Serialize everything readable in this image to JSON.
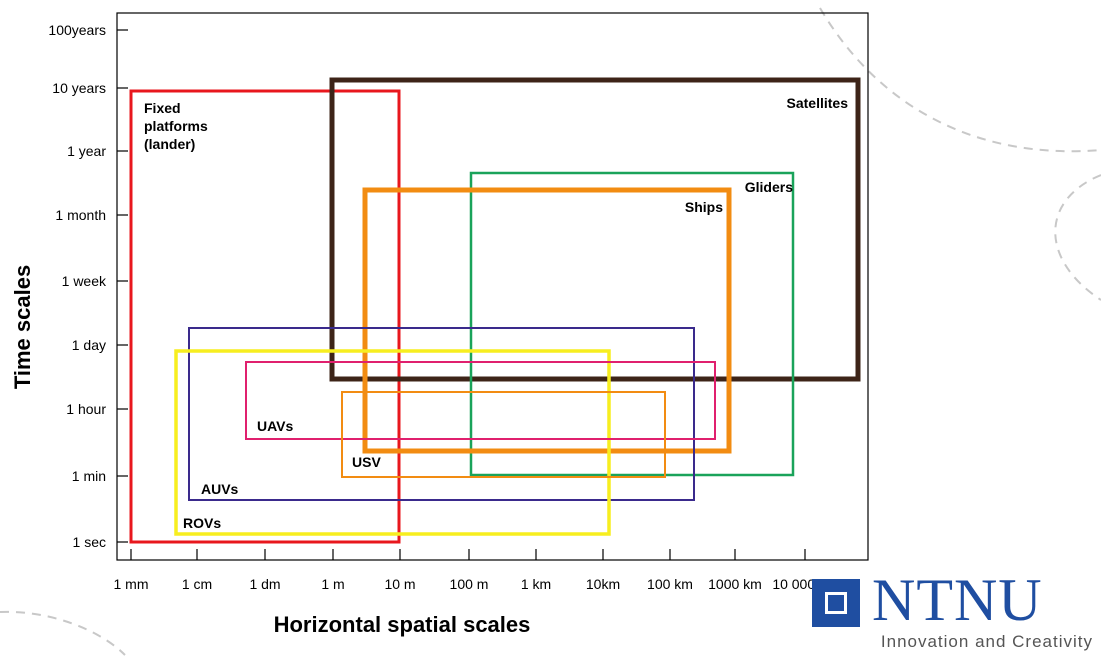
{
  "chart_data": {
    "type": "range-boxes",
    "xlabel": "Horizontal spatial scales",
    "ylabel": "Time scales",
    "x_ticks": [
      "1 mm",
      "1 cm",
      "1 dm",
      "1 m",
      "10 m",
      "100 m",
      "1 km",
      "10km",
      "100 km",
      "1000 km",
      "10 000 km"
    ],
    "y_ticks": [
      "1 sec",
      "1 min",
      "1 hour",
      "1 day",
      "1 week",
      "1 month",
      "1 year",
      "10 years",
      "100years"
    ],
    "platforms": [
      {
        "name": "Fixed platforms (lander)",
        "label_lines": [
          "Fixed",
          "platforms",
          "(lander)"
        ],
        "x": [
          "1 mm",
          "10 m"
        ],
        "y": [
          "1 sec",
          "10 years"
        ],
        "color": "#e8171d"
      },
      {
        "name": "Satellites",
        "label_lines": [
          "Satellites"
        ],
        "x": [
          "1 m",
          "≈ 50 000 km"
        ],
        "y": [
          "≈ 6 hours",
          "≈ 12 years"
        ],
        "color": "#3d2418"
      },
      {
        "name": "Gliders",
        "label_lines": [
          "Gliders"
        ],
        "x": [
          "100 m",
          "≈ 5000 km"
        ],
        "y": [
          "1 min",
          "≈ 1.5 years"
        ],
        "color": "#1aa35a"
      },
      {
        "name": "Ships",
        "label_lines": [
          "Ships"
        ],
        "x": [
          "≈ 3 m",
          "≈ 700 km"
        ],
        "y": [
          "≈ 5 min",
          "≈ 1 year"
        ],
        "color": "#f28c12"
      },
      {
        "name": "AUVs",
        "label_lines": [
          "AUVs"
        ],
        "x": [
          "≈ 1 cm",
          "≈ 200 km"
        ],
        "y": [
          "≈ 20 sec",
          "≈ 2 days"
        ],
        "color": "#3a2a8c"
      },
      {
        "name": "ROVs",
        "label_lines": [
          "ROVs"
        ],
        "x": [
          "≈ 5 mm",
          "≈ 10 km"
        ],
        "y": [
          "≈ 2 sec",
          "≈ 18 hours"
        ],
        "color": "#f7ee1f"
      },
      {
        "name": "UAVs",
        "label_lines": [
          "UAVs"
        ],
        "x": [
          "≈ 5 cm",
          "≈ 500 km"
        ],
        "y": [
          "≈ 15 min",
          "≈ 12 hours"
        ],
        "color": "#e0206e"
      },
      {
        "name": "USV",
        "label_lines": [
          "USV"
        ],
        "x": [
          "≈ 1 m",
          "≈ 60 km"
        ],
        "y": [
          "≈ 1 min",
          "≈ 3 hours"
        ],
        "color": "#f28c12"
      }
    ]
  },
  "logo": {
    "wordmark": "NTNU",
    "tagline": "Innovation and Creativity",
    "color": "#1f4ea1"
  }
}
